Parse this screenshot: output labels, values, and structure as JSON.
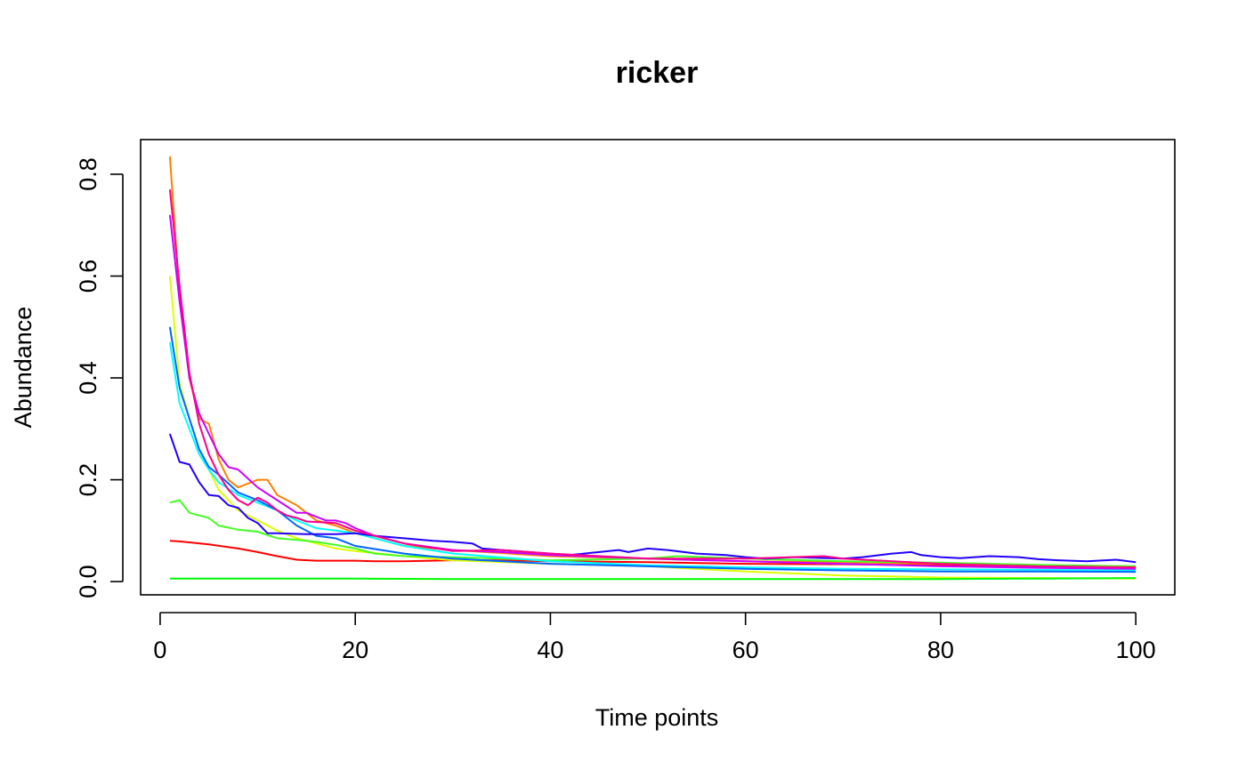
{
  "chart_data": {
    "type": "line",
    "title": "ricker",
    "xlabel": "Time points",
    "ylabel": "Abundance",
    "xlim": [
      -2,
      104
    ],
    "ylim": [
      -0.026,
      0.868
    ],
    "xticks": [
      0,
      20,
      40,
      60,
      80,
      100
    ],
    "yticks": [
      0.0,
      0.2,
      0.4,
      0.6,
      0.8
    ],
    "xtick_labels": [
      "0",
      "20",
      "40",
      "60",
      "80",
      "100"
    ],
    "ytick_labels": [
      "0.0",
      "0.2",
      "0.4",
      "0.6",
      "0.8"
    ],
    "grid": false,
    "legend": "none",
    "series": [
      {
        "color": "#FF0000",
        "x": [
          1,
          2,
          3,
          5,
          8,
          10,
          12,
          14,
          16,
          18,
          20,
          22,
          25,
          30,
          35,
          40,
          50,
          60,
          70,
          80,
          90,
          100
        ],
        "values": [
          0.08,
          0.079,
          0.077,
          0.073,
          0.065,
          0.058,
          0.05,
          0.043,
          0.041,
          0.041,
          0.041,
          0.04,
          0.04,
          0.042,
          0.042,
          0.04,
          0.038,
          0.035,
          0.034,
          0.032,
          0.03,
          0.028
        ]
      },
      {
        "color": "#FF8000",
        "x": [
          1,
          2,
          3,
          4,
          5,
          6,
          7,
          8,
          10,
          11,
          12,
          14,
          16,
          18,
          20,
          22,
          25,
          30,
          35,
          40,
          50,
          60,
          70,
          80,
          90,
          100
        ],
        "values": [
          0.835,
          0.56,
          0.4,
          0.32,
          0.31,
          0.24,
          0.2,
          0.185,
          0.2,
          0.2,
          0.17,
          0.15,
          0.12,
          0.11,
          0.095,
          0.085,
          0.07,
          0.062,
          0.056,
          0.05,
          0.045,
          0.04,
          0.038,
          0.035,
          0.032,
          0.03
        ]
      },
      {
        "color": "#DDFF00",
        "x": [
          1,
          2,
          3,
          4,
          5,
          6,
          8,
          10,
          12,
          14,
          16,
          18,
          20,
          25,
          30,
          40,
          50,
          60,
          70,
          80,
          90,
          100
        ],
        "values": [
          0.6,
          0.39,
          0.32,
          0.26,
          0.22,
          0.18,
          0.14,
          0.12,
          0.1,
          0.085,
          0.075,
          0.065,
          0.06,
          0.05,
          0.042,
          0.035,
          0.03,
          0.02,
          0.012,
          0.008,
          0.007,
          0.006
        ]
      },
      {
        "color": "#00FF00",
        "x": [
          1,
          10,
          20,
          30,
          40,
          50,
          60,
          70,
          80,
          90,
          100
        ],
        "values": [
          0.006,
          0.006,
          0.006,
          0.005,
          0.005,
          0.005,
          0.005,
          0.005,
          0.005,
          0.006,
          0.007
        ]
      },
      {
        "color": "#44FF22",
        "x": [
          1,
          2,
          3,
          5,
          6,
          8,
          10,
          12,
          14,
          16,
          18,
          20,
          22,
          25,
          30,
          35,
          40,
          50,
          53,
          60,
          70,
          80,
          90,
          100
        ],
        "values": [
          0.155,
          0.16,
          0.135,
          0.125,
          0.11,
          0.102,
          0.098,
          0.085,
          0.082,
          0.078,
          0.072,
          0.065,
          0.055,
          0.05,
          0.048,
          0.045,
          0.042,
          0.045,
          0.05,
          0.045,
          0.04,
          0.037,
          0.033,
          0.03
        ]
      },
      {
        "color": "#00FFFF",
        "x": [
          1,
          2,
          3,
          4,
          5,
          6,
          8,
          10,
          12,
          14,
          16,
          18,
          20,
          25,
          30,
          40,
          50,
          60,
          70,
          80,
          90,
          100
        ],
        "values": [
          0.47,
          0.35,
          0.3,
          0.25,
          0.22,
          0.195,
          0.17,
          0.155,
          0.14,
          0.12,
          0.105,
          0.1,
          0.095,
          0.07,
          0.055,
          0.04,
          0.032,
          0.028,
          0.025,
          0.024,
          0.023,
          0.022
        ]
      },
      {
        "color": "#0066FF",
        "x": [
          1,
          2,
          3,
          4,
          5,
          6,
          8,
          10,
          12,
          14,
          16,
          18,
          20,
          25,
          30,
          40,
          50,
          60,
          70,
          80,
          90,
          100
        ],
        "values": [
          0.5,
          0.38,
          0.32,
          0.26,
          0.225,
          0.21,
          0.175,
          0.16,
          0.14,
          0.11,
          0.09,
          0.085,
          0.07,
          0.055,
          0.045,
          0.035,
          0.03,
          0.025,
          0.022,
          0.02,
          0.02,
          0.019
        ]
      },
      {
        "color": "#2200FF",
        "x": [
          1,
          2,
          3,
          4,
          5,
          6,
          7,
          8,
          9,
          10,
          11,
          12,
          15,
          18,
          20,
          22,
          25,
          28,
          30,
          32,
          33,
          35,
          40,
          42,
          45,
          47,
          48,
          50,
          52,
          55,
          58,
          60,
          62,
          65,
          70,
          72,
          75,
          77,
          78,
          80,
          82,
          85,
          88,
          90,
          92,
          95,
          98,
          100
        ],
        "values": [
          0.29,
          0.235,
          0.23,
          0.195,
          0.17,
          0.168,
          0.15,
          0.145,
          0.125,
          0.115,
          0.095,
          0.095,
          0.093,
          0.093,
          0.095,
          0.09,
          0.085,
          0.08,
          0.078,
          0.075,
          0.065,
          0.062,
          0.055,
          0.052,
          0.058,
          0.062,
          0.058,
          0.065,
          0.062,
          0.055,
          0.052,
          0.048,
          0.045,
          0.048,
          0.045,
          0.048,
          0.055,
          0.058,
          0.052,
          0.048,
          0.046,
          0.05,
          0.048,
          0.044,
          0.042,
          0.04,
          0.043,
          0.038
        ]
      },
      {
        "color": "#CC00FF",
        "x": [
          1,
          2,
          3,
          4,
          5,
          6,
          7,
          8,
          10,
          12,
          14,
          15,
          17,
          18,
          19,
          20,
          22,
          25,
          30,
          35,
          40,
          50,
          60,
          70,
          80,
          90,
          100
        ],
        "values": [
          0.72,
          0.55,
          0.4,
          0.33,
          0.29,
          0.25,
          0.225,
          0.22,
          0.185,
          0.16,
          0.135,
          0.135,
          0.12,
          0.12,
          0.115,
          0.105,
          0.09,
          0.075,
          0.062,
          0.058,
          0.052,
          0.045,
          0.04,
          0.035,
          0.03,
          0.027,
          0.025
        ]
      },
      {
        "color": "#FF0088",
        "x": [
          1,
          2,
          3,
          4,
          5,
          6,
          7,
          8,
          9,
          10,
          11,
          12,
          13,
          14,
          15,
          18,
          20,
          25,
          30,
          35,
          40,
          50,
          60,
          68,
          70,
          80,
          90,
          100
        ],
        "values": [
          0.77,
          0.58,
          0.41,
          0.31,
          0.25,
          0.21,
          0.18,
          0.16,
          0.15,
          0.165,
          0.155,
          0.14,
          0.13,
          0.125,
          0.118,
          0.115,
          0.1,
          0.075,
          0.06,
          0.062,
          0.055,
          0.045,
          0.045,
          0.05,
          0.045,
          0.035,
          0.03,
          0.028
        ]
      }
    ]
  }
}
